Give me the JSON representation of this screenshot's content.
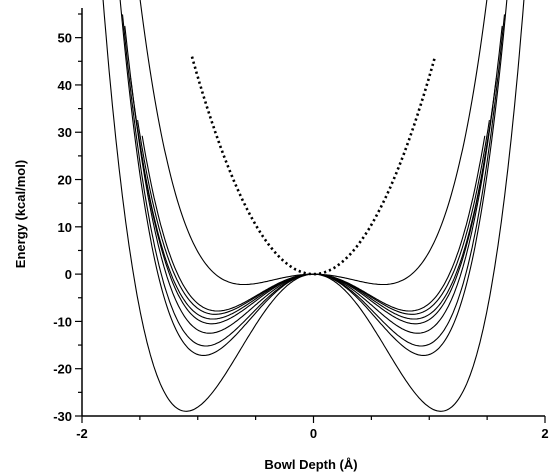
{
  "chart_data": {
    "type": "line",
    "title": "",
    "xlabel": "Bowl Depth (Å)",
    "ylabel": "Energy (kcal/mol)",
    "xlim": [
      -2,
      2
    ],
    "ylim": [
      -30,
      55
    ],
    "x_ticks": [
      -2,
      0,
      2
    ],
    "y_ticks": [
      -30,
      -20,
      -10,
      0,
      10,
      20,
      30,
      40,
      50
    ],
    "grid": false,
    "legend": "none",
    "series": [
      {
        "style": "solid",
        "color": "#000000",
        "minimum_x": 1.1,
        "minimum_y": -29,
        "x_range": [
          -1.85,
          1.85
        ]
      },
      {
        "style": "solid",
        "color": "#000000",
        "minimum_x": 0.95,
        "minimum_y": -17.2,
        "x_range": [
          -1.68,
          1.68
        ]
      },
      {
        "style": "solid",
        "color": "#000000",
        "minimum_x": 0.93,
        "minimum_y": -15.2,
        "x_range": [
          -1.65,
          1.65
        ]
      },
      {
        "style": "solid",
        "color": "#000000",
        "minimum_x": 0.9,
        "minimum_y": -12.5,
        "x_range": [
          -1.63,
          1.63
        ]
      },
      {
        "style": "solid",
        "color": "#000000",
        "minimum_x": 0.88,
        "minimum_y": -10.5,
        "x_range": [
          -1.58,
          1.58
        ]
      },
      {
        "style": "solid",
        "color": "#000000",
        "minimum_x": 0.87,
        "minimum_y": -9.5,
        "x_range": [
          -1.55,
          1.55
        ]
      },
      {
        "style": "solid",
        "color": "#000000",
        "minimum_x": 0.85,
        "minimum_y": -8.5,
        "x_range": [
          -1.52,
          1.52
        ]
      },
      {
        "style": "solid",
        "color": "#000000",
        "minimum_x": 0.83,
        "minimum_y": -7.8,
        "x_range": [
          -1.48,
          1.48
        ]
      },
      {
        "style": "solid",
        "color": "#000000",
        "minimum_x": 0.6,
        "minimum_y": -2.2,
        "x_range": [
          -1.8,
          1.8
        ]
      },
      {
        "style": "dotted",
        "color": "#000000",
        "x_range": [
          -1.05,
          1.05
        ],
        "endpoint_y": 46
      }
    ]
  }
}
